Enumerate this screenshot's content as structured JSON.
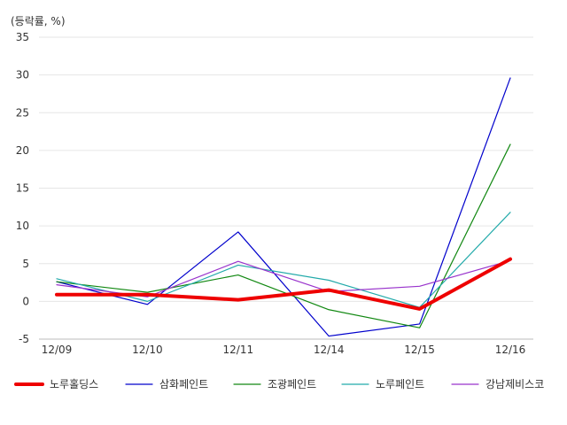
{
  "chart_data": {
    "type": "line",
    "unit_label": "(등락률, %)",
    "categories": [
      "12/09",
      "12/10",
      "12/11",
      "12/14",
      "12/15",
      "12/16"
    ],
    "ylim": [
      -5,
      35
    ],
    "yticks": [
      -5,
      0,
      5,
      10,
      15,
      20,
      25,
      30,
      35
    ],
    "grid": true,
    "legend_position": "bottom",
    "series": [
      {
        "name": "노루홀딩스",
        "color": "#ee0000",
        "emphasis": true,
        "values": [
          0.9,
          0.9,
          0.2,
          1.5,
          -1.0,
          5.6
        ]
      },
      {
        "name": "삼화페인트",
        "color": "#0000cc",
        "emphasis": false,
        "values": [
          2.6,
          -0.4,
          9.2,
          -4.6,
          -3.0,
          29.6
        ]
      },
      {
        "name": "조광페인트",
        "color": "#118811",
        "emphasis": false,
        "values": [
          2.6,
          1.2,
          3.5,
          -1.1,
          -3.5,
          20.8
        ]
      },
      {
        "name": "노루페인트",
        "color": "#22aaaa",
        "emphasis": false,
        "values": [
          3.0,
          0.0,
          4.8,
          2.8,
          -0.8,
          11.8
        ]
      },
      {
        "name": "강남제비스코",
        "color": "#9933cc",
        "emphasis": false,
        "values": [
          2.2,
          0.6,
          5.3,
          1.3,
          2.0,
          5.4
        ]
      }
    ]
  }
}
